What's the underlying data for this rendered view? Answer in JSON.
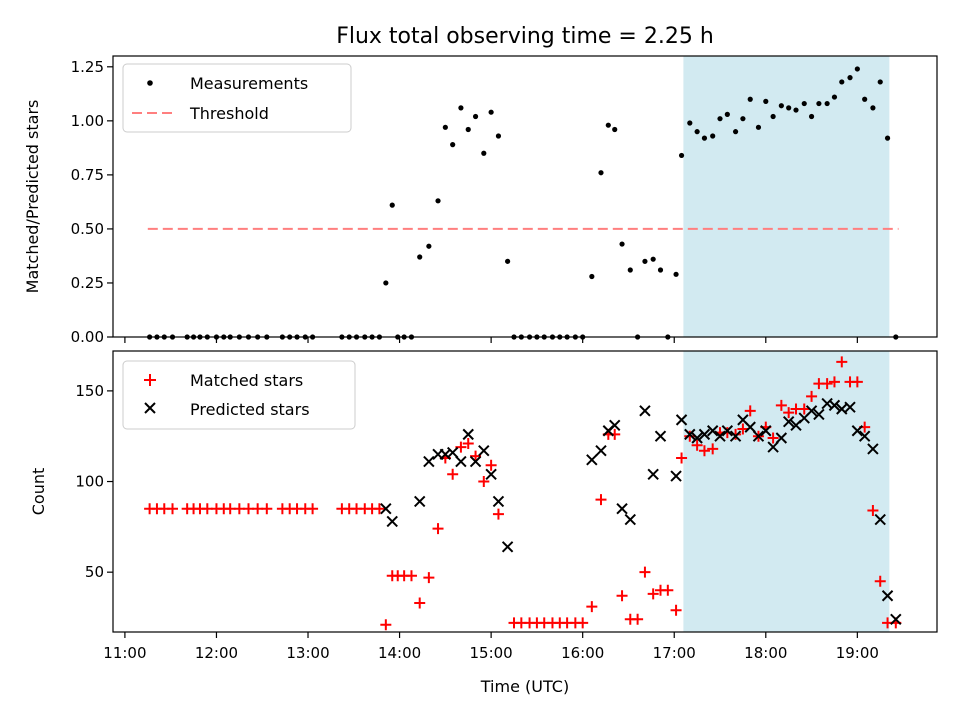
{
  "chart_data": {
    "title": "Flux total observing time = 2.25 h",
    "xlabel": "Time (UTC)",
    "x_ticks": [
      "11:00",
      "12:00",
      "13:00",
      "14:00",
      "15:00",
      "16:00",
      "17:00",
      "18:00",
      "19:00"
    ],
    "xlim": [
      10.87,
      19.87
    ],
    "shaded_region": {
      "x": [
        17.1,
        19.35
      ],
      "color": "#add8e6"
    },
    "panels": [
      {
        "type": "scatter",
        "ylabel": "Matched/Predicted stars",
        "ylim": [
          0,
          1.3
        ],
        "y_ticks": [
          "0.00",
          "0.25",
          "0.50",
          "0.75",
          "1.00",
          "1.25"
        ],
        "legend_position": "top-left",
        "threshold": {
          "name": "Threshold",
          "value": 0.5,
          "x": [
            11.25,
            19.45
          ],
          "color": "#ff7f7f"
        },
        "series": [
          {
            "name": "Measurements",
            "color": "#000000",
            "marker": "dot",
            "points": [
              [
                11.27,
                0
              ],
              [
                11.35,
                0
              ],
              [
                11.43,
                0
              ],
              [
                11.52,
                0
              ],
              [
                11.68,
                0
              ],
              [
                11.75,
                0
              ],
              [
                11.82,
                0
              ],
              [
                11.9,
                0
              ],
              [
                12.0,
                0
              ],
              [
                12.08,
                0
              ],
              [
                12.15,
                0
              ],
              [
                12.25,
                0
              ],
              [
                12.35,
                0
              ],
              [
                12.45,
                0
              ],
              [
                12.55,
                0
              ],
              [
                12.72,
                0
              ],
              [
                12.8,
                0
              ],
              [
                12.88,
                0
              ],
              [
                12.97,
                0
              ],
              [
                13.05,
                0
              ],
              [
                13.37,
                0
              ],
              [
                13.45,
                0
              ],
              [
                13.53,
                0
              ],
              [
                13.62,
                0
              ],
              [
                13.7,
                0
              ],
              [
                13.78,
                0
              ],
              [
                13.85,
                0.25
              ],
              [
                13.92,
                0.61
              ],
              [
                13.98,
                0
              ],
              [
                14.05,
                0
              ],
              [
                14.13,
                0
              ],
              [
                14.22,
                0.37
              ],
              [
                14.32,
                0.42
              ],
              [
                14.42,
                0.63
              ],
              [
                14.5,
                0.97
              ],
              [
                14.58,
                0.89
              ],
              [
                14.67,
                1.06
              ],
              [
                14.75,
                0.96
              ],
              [
                14.83,
                1.02
              ],
              [
                14.92,
                0.85
              ],
              [
                15.0,
                1.04
              ],
              [
                15.08,
                0.93
              ],
              [
                15.18,
                0.35
              ],
              [
                15.25,
                0
              ],
              [
                15.33,
                0
              ],
              [
                15.42,
                0
              ],
              [
                15.5,
                0
              ],
              [
                15.58,
                0
              ],
              [
                15.67,
                0
              ],
              [
                15.75,
                0
              ],
              [
                15.83,
                0
              ],
              [
                15.92,
                0
              ],
              [
                16.0,
                0
              ],
              [
                16.1,
                0.28
              ],
              [
                16.2,
                0.76
              ],
              [
                16.28,
                0.98
              ],
              [
                16.35,
                0.96
              ],
              [
                16.43,
                0.43
              ],
              [
                16.52,
                0.31
              ],
              [
                16.6,
                0
              ],
              [
                16.68,
                0.35
              ],
              [
                16.77,
                0.36
              ],
              [
                16.85,
                0.31
              ],
              [
                16.93,
                0
              ],
              [
                17.02,
                0.29
              ],
              [
                17.08,
                0.84
              ],
              [
                17.17,
                0.99
              ],
              [
                17.25,
                0.95
              ],
              [
                17.33,
                0.92
              ],
              [
                17.42,
                0.93
              ],
              [
                17.5,
                1.01
              ],
              [
                17.58,
                1.03
              ],
              [
                17.67,
                0.95
              ],
              [
                17.75,
                1.01
              ],
              [
                17.83,
                1.1
              ],
              [
                17.92,
                0.97
              ],
              [
                18.0,
                1.09
              ],
              [
                18.08,
                1.02
              ],
              [
                18.17,
                1.07
              ],
              [
                18.25,
                1.06
              ],
              [
                18.33,
                1.05
              ],
              [
                18.42,
                1.08
              ],
              [
                18.5,
                1.02
              ],
              [
                18.58,
                1.08
              ],
              [
                18.67,
                1.08
              ],
              [
                18.75,
                1.11
              ],
              [
                18.83,
                1.18
              ],
              [
                18.92,
                1.2
              ],
              [
                19.0,
                1.24
              ],
              [
                19.08,
                1.1
              ],
              [
                19.17,
                1.06
              ],
              [
                19.25,
                1.18
              ],
              [
                19.33,
                0.92
              ],
              [
                19.42,
                0
              ]
            ]
          }
        ]
      },
      {
        "type": "scatter",
        "ylabel": "Count",
        "ylim": [
          17,
          172
        ],
        "y_ticks": [
          "50",
          "100",
          "150"
        ],
        "legend_position": "top-left",
        "series": [
          {
            "name": "Matched stars",
            "color": "#ff0000",
            "marker": "plus",
            "points": [
              [
                11.27,
                85
              ],
              [
                11.35,
                85
              ],
              [
                11.43,
                85
              ],
              [
                11.52,
                85
              ],
              [
                11.68,
                85
              ],
              [
                11.75,
                85
              ],
              [
                11.82,
                85
              ],
              [
                11.9,
                85
              ],
              [
                12.0,
                85
              ],
              [
                12.08,
                85
              ],
              [
                12.15,
                85
              ],
              [
                12.25,
                85
              ],
              [
                12.35,
                85
              ],
              [
                12.45,
                85
              ],
              [
                12.55,
                85
              ],
              [
                12.72,
                85
              ],
              [
                12.8,
                85
              ],
              [
                12.88,
                85
              ],
              [
                12.97,
                85
              ],
              [
                13.05,
                85
              ],
              [
                13.37,
                85
              ],
              [
                13.45,
                85
              ],
              [
                13.53,
                85
              ],
              [
                13.62,
                85
              ],
              [
                13.7,
                85
              ],
              [
                13.78,
                85
              ],
              [
                13.85,
                21
              ],
              [
                13.92,
                48
              ],
              [
                13.98,
                48
              ],
              [
                14.05,
                48
              ],
              [
                14.13,
                48
              ],
              [
                14.22,
                33
              ],
              [
                14.32,
                47
              ],
              [
                14.42,
                74
              ],
              [
                14.5,
                113
              ],
              [
                14.58,
                104
              ],
              [
                14.67,
                119
              ],
              [
                14.75,
                121
              ],
              [
                14.83,
                114
              ],
              [
                14.92,
                100
              ],
              [
                15.0,
                109
              ],
              [
                15.08,
                82
              ],
              [
                15.25,
                22
              ],
              [
                15.33,
                22
              ],
              [
                15.42,
                22
              ],
              [
                15.5,
                22
              ],
              [
                15.58,
                22
              ],
              [
                15.67,
                22
              ],
              [
                15.75,
                22
              ],
              [
                15.83,
                22
              ],
              [
                15.92,
                22
              ],
              [
                16.0,
                22
              ],
              [
                16.1,
                31
              ],
              [
                16.2,
                90
              ],
              [
                16.28,
                126
              ],
              [
                16.35,
                126
              ],
              [
                16.43,
                37
              ],
              [
                16.52,
                24
              ],
              [
                16.6,
                24
              ],
              [
                16.68,
                50
              ],
              [
                16.77,
                38
              ],
              [
                16.85,
                40
              ],
              [
                16.93,
                40
              ],
              [
                17.02,
                29
              ],
              [
                17.08,
                113
              ],
              [
                17.17,
                125
              ],
              [
                17.25,
                120
              ],
              [
                17.33,
                117
              ],
              [
                17.42,
                118
              ],
              [
                17.5,
                127
              ],
              [
                17.58,
                127
              ],
              [
                17.67,
                126
              ],
              [
                17.75,
                129
              ],
              [
                17.83,
                139
              ],
              [
                17.92,
                125
              ],
              [
                18.0,
                130
              ],
              [
                18.08,
                124
              ],
              [
                18.17,
                142
              ],
              [
                18.25,
                138
              ],
              [
                18.33,
                140
              ],
              [
                18.42,
                140
              ],
              [
                18.5,
                147
              ],
              [
                18.58,
                154
              ],
              [
                18.67,
                154
              ],
              [
                18.75,
                155
              ],
              [
                18.83,
                166
              ],
              [
                18.92,
                155
              ],
              [
                19.0,
                155
              ],
              [
                19.08,
                130
              ],
              [
                19.17,
                84
              ],
              [
                19.25,
                45
              ],
              [
                19.33,
                22
              ],
              [
                19.42,
                22
              ]
            ]
          },
          {
            "name": "Predicted stars",
            "color": "#000000",
            "marker": "x",
            "points": [
              [
                13.85,
                85
              ],
              [
                13.92,
                78
              ],
              [
                14.22,
                89
              ],
              [
                14.32,
                111
              ],
              [
                14.42,
                115
              ],
              [
                14.5,
                115
              ],
              [
                14.58,
                116
              ],
              [
                14.67,
                111
              ],
              [
                14.75,
                126
              ],
              [
                14.83,
                111
              ],
              [
                14.92,
                117
              ],
              [
                15.0,
                104
              ],
              [
                15.08,
                89
              ],
              [
                15.18,
                64
              ],
              [
                16.1,
                112
              ],
              [
                16.2,
                117
              ],
              [
                16.28,
                128
              ],
              [
                16.35,
                131
              ],
              [
                16.43,
                85
              ],
              [
                16.52,
                79
              ],
              [
                16.68,
                139
              ],
              [
                16.77,
                104
              ],
              [
                16.85,
                125
              ],
              [
                17.02,
                103
              ],
              [
                17.08,
                134
              ],
              [
                17.17,
                126
              ],
              [
                17.25,
                124
              ],
              [
                17.33,
                126
              ],
              [
                17.42,
                128
              ],
              [
                17.5,
                125
              ],
              [
                17.58,
                128
              ],
              [
                17.67,
                125
              ],
              [
                17.75,
                134
              ],
              [
                17.83,
                130
              ],
              [
                17.92,
                125
              ],
              [
                18.0,
                128
              ],
              [
                18.08,
                119
              ],
              [
                18.17,
                124
              ],
              [
                18.25,
                133
              ],
              [
                18.33,
                131
              ],
              [
                18.42,
                135
              ],
              [
                18.5,
                139
              ],
              [
                18.58,
                137
              ],
              [
                18.67,
                143
              ],
              [
                18.75,
                142
              ],
              [
                18.83,
                140
              ],
              [
                18.92,
                141
              ],
              [
                19.0,
                128
              ],
              [
                19.08,
                125
              ],
              [
                19.17,
                118
              ],
              [
                19.25,
                79
              ],
              [
                19.33,
                37
              ],
              [
                19.42,
                24
              ]
            ]
          }
        ]
      }
    ]
  }
}
